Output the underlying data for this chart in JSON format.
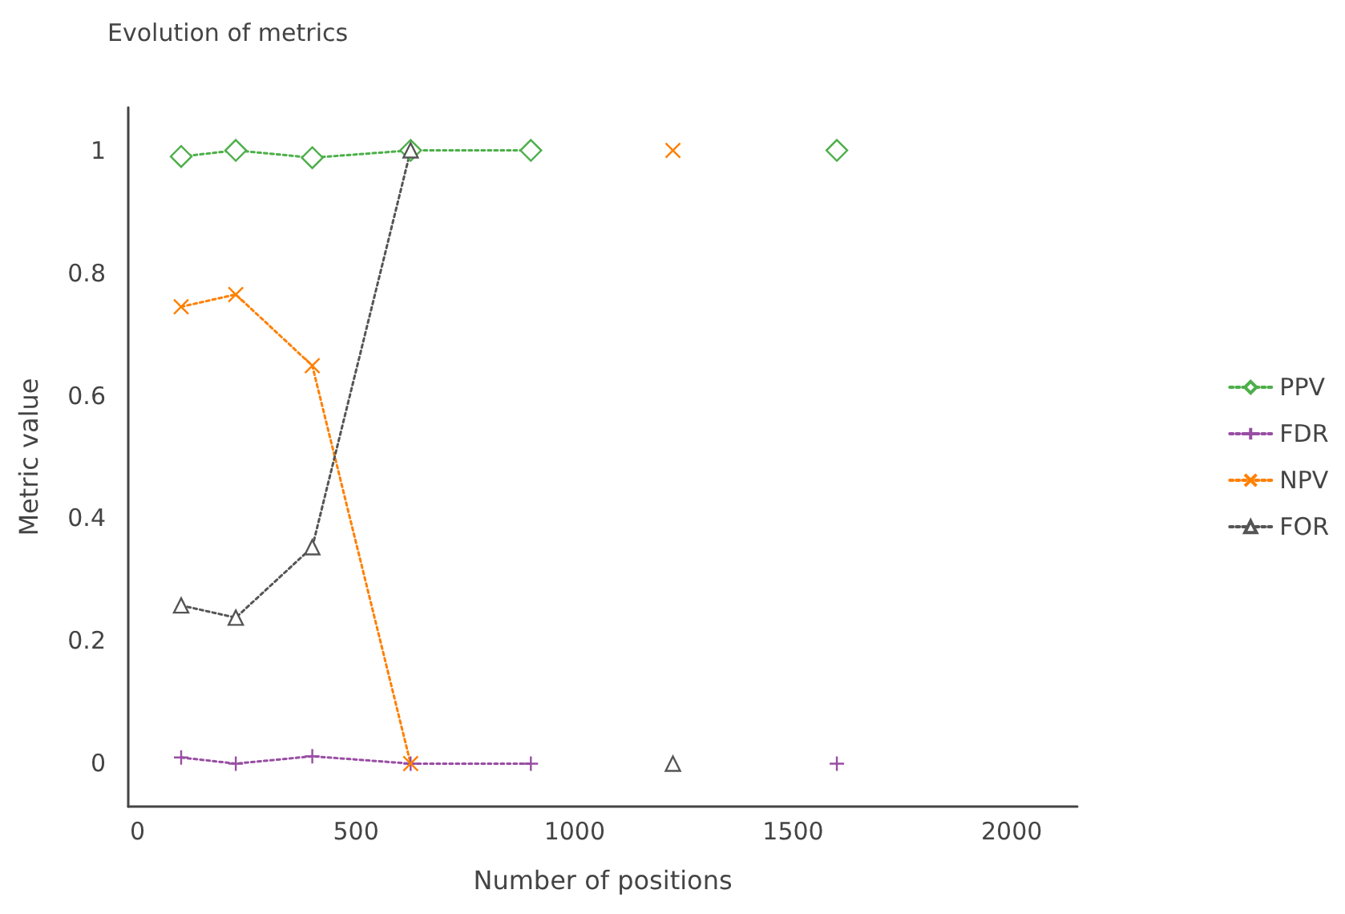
{
  "chart_data": {
    "type": "line",
    "title": "Evolution of metrics",
    "xlabel": "Number of positions",
    "ylabel": "Metric value",
    "x": [
      100,
      225,
      400,
      625,
      900,
      1225,
      1600
    ],
    "series": [
      {
        "name": "PPV",
        "color": "#4daf4a",
        "marker": "diamond",
        "values": [
          0.99,
          1,
          0.988,
          1,
          1,
          null,
          1
        ]
      },
      {
        "name": "FDR",
        "color": "#984ea3",
        "marker": "cross",
        "values": [
          0.01,
          0,
          0.012,
          0,
          0,
          null,
          0
        ]
      },
      {
        "name": "NPV",
        "color": "#ff7f00",
        "marker": "x",
        "values": [
          0.745,
          0.765,
          0.649,
          0,
          null,
          1,
          null
        ]
      },
      {
        "name": "FOR",
        "color": "#555555",
        "marker": "triangle",
        "values": [
          0.258,
          0.238,
          0.353,
          1,
          null,
          0,
          null
        ]
      }
    ],
    "xlim": [
      -21,
      2150
    ],
    "xticks": [
      0,
      500,
      1000,
      1500,
      2000
    ],
    "ylim": [
      -0.07,
      1.07
    ],
    "yticks": [
      0,
      0.2,
      0.4,
      0.6,
      0.8,
      1
    ],
    "grid": false,
    "legend": "right",
    "line_style": "dotted"
  }
}
